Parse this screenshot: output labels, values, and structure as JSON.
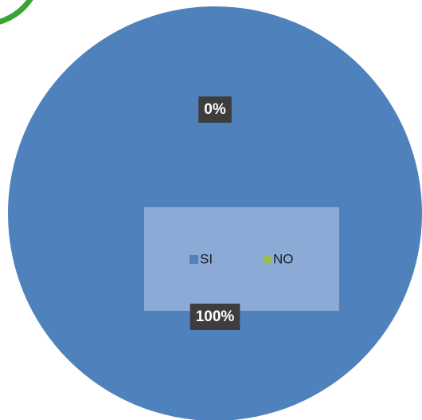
{
  "chart_data": {
    "type": "pie",
    "categories": [
      "SI",
      "NO"
    ],
    "values": [
      100,
      0
    ],
    "value_labels": [
      "100%",
      "0%"
    ],
    "colors": [
      "#4f81bd",
      "#9bbb59"
    ],
    "legend": "center"
  }
}
